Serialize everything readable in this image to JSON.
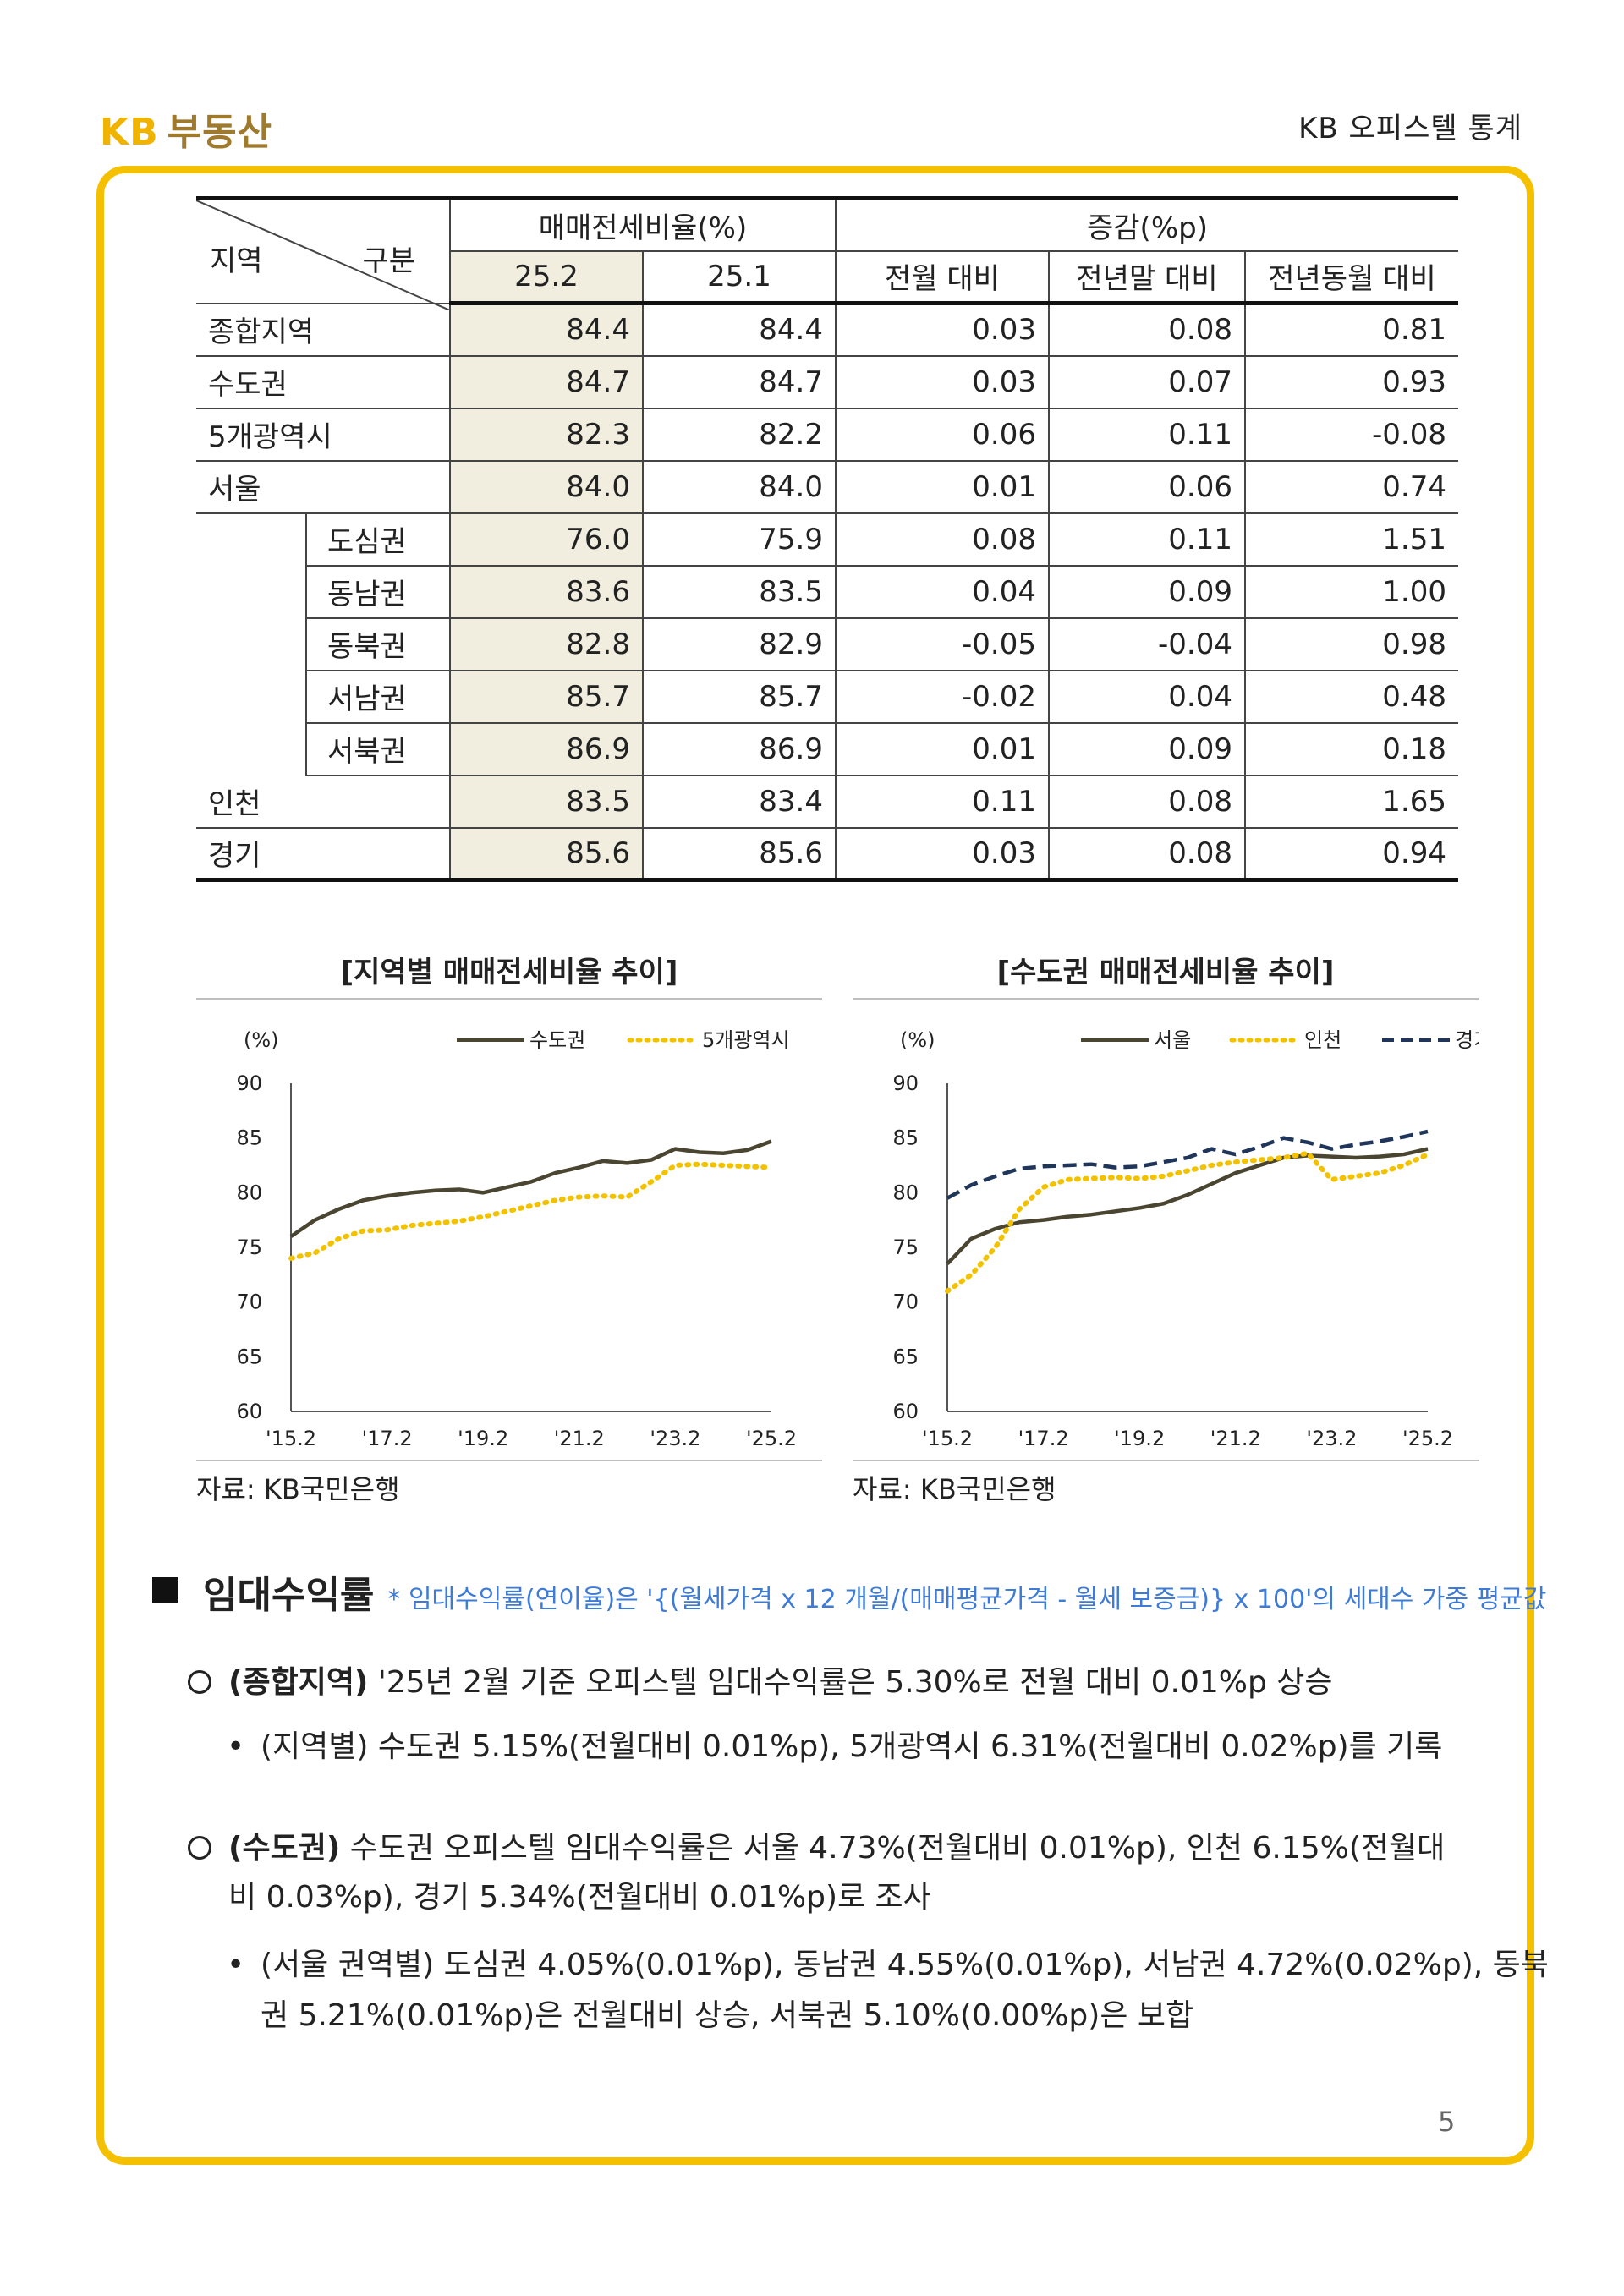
{
  "header": {
    "brand_kb": "KB",
    "brand_name": "부동산",
    "doc_title": "KB 오피스텔 통계"
  },
  "table": {
    "corner_region": "지역",
    "corner_category": "구분",
    "group1": "매매전세비율(%)",
    "group2": "증감(%p)",
    "cols": [
      "25.2",
      "25.1",
      "전월 대비",
      "전년말 대비",
      "전년동월 대비"
    ],
    "rows": [
      {
        "label": "종합지역",
        "sub": "",
        "values": [
          "84.4",
          "84.4",
          "0.03",
          "0.08",
          "0.81"
        ]
      },
      {
        "label": "수도권",
        "sub": "",
        "values": [
          "84.7",
          "84.7",
          "0.03",
          "0.07",
          "0.93"
        ]
      },
      {
        "label": "5개광역시",
        "sub": "",
        "values": [
          "82.3",
          "82.2",
          "0.06",
          "0.11",
          "-0.08"
        ]
      },
      {
        "label": "서울",
        "sub": "",
        "values": [
          "84.0",
          "84.0",
          "0.01",
          "0.06",
          "0.74"
        ]
      },
      {
        "label": "",
        "sub": "도심권",
        "values": [
          "76.0",
          "75.9",
          "0.08",
          "0.11",
          "1.51"
        ]
      },
      {
        "label": "",
        "sub": "동남권",
        "values": [
          "83.6",
          "83.5",
          "0.04",
          "0.09",
          "1.00"
        ]
      },
      {
        "label": "",
        "sub": "동북권",
        "values": [
          "82.8",
          "82.9",
          "-0.05",
          "-0.04",
          "0.98"
        ]
      },
      {
        "label": "",
        "sub": "서남권",
        "values": [
          "85.7",
          "85.7",
          "-0.02",
          "0.04",
          "0.48"
        ]
      },
      {
        "label": "",
        "sub": "서북권",
        "values": [
          "86.9",
          "86.9",
          "0.01",
          "0.09",
          "0.18"
        ]
      },
      {
        "label": "인천",
        "sub": "",
        "values": [
          "83.5",
          "83.4",
          "0.11",
          "0.08",
          "1.65"
        ]
      },
      {
        "label": "경기",
        "sub": "",
        "values": [
          "85.6",
          "85.6",
          "0.03",
          "0.08",
          "0.94"
        ]
      }
    ]
  },
  "chart_data": [
    {
      "type": "line",
      "title": "[지역별 매매전세비율 추이]",
      "ylabel": "(%)",
      "ylim": [
        60,
        90
      ],
      "yticks": [
        "90",
        "85",
        "80",
        "75",
        "70",
        "65",
        "60"
      ],
      "xticks": [
        "'15.2",
        "'17.2",
        "'19.2",
        "'21.2",
        "'23.2",
        "'25.2"
      ],
      "source": "자료: KB국민은행",
      "series": [
        {
          "name": "수도권",
          "style": "solid",
          "color": "#4a4530",
          "x": [
            0,
            0.5,
            1,
            1.5,
            2,
            2.5,
            3,
            3.5,
            4,
            4.5,
            5,
            5.5,
            6,
            6.5,
            7,
            7.5,
            8,
            8.5,
            9,
            9.5,
            10
          ],
          "values": [
            76.0,
            77.5,
            78.5,
            79.3,
            79.7,
            80.0,
            80.2,
            80.3,
            80.0,
            80.5,
            81.0,
            81.8,
            82.3,
            82.9,
            82.7,
            83.0,
            84.0,
            83.7,
            83.6,
            83.9,
            84.7
          ]
        },
        {
          "name": "5개광역시",
          "style": "dotted",
          "color": "#f2c200",
          "x": [
            0,
            0.5,
            1,
            1.5,
            2,
            2.5,
            3,
            3.5,
            4,
            4.5,
            5,
            5.5,
            6,
            6.5,
            7,
            7.5,
            8,
            8.5,
            9,
            9.5,
            10
          ],
          "values": [
            74.0,
            74.5,
            75.8,
            76.5,
            76.6,
            77.0,
            77.2,
            77.4,
            77.8,
            78.3,
            78.8,
            79.3,
            79.6,
            79.7,
            79.6,
            81.0,
            82.5,
            82.6,
            82.5,
            82.4,
            82.3
          ]
        }
      ]
    },
    {
      "type": "line",
      "title": "[수도권 매매전세비율 추이]",
      "ylabel": "(%)",
      "ylim": [
        60,
        90
      ],
      "yticks": [
        "90",
        "85",
        "80",
        "75",
        "70",
        "65",
        "60"
      ],
      "xticks": [
        "'15.2",
        "'17.2",
        "'19.2",
        "'21.2",
        "'23.2",
        "'25.2"
      ],
      "source": "자료: KB국민은행",
      "series": [
        {
          "name": "서울",
          "style": "solid",
          "color": "#4a4530",
          "x": [
            0,
            0.5,
            1,
            1.5,
            2,
            2.5,
            3,
            3.5,
            4,
            4.5,
            5,
            5.5,
            6,
            6.5,
            7,
            7.5,
            8,
            8.5,
            9,
            9.5,
            10
          ],
          "values": [
            73.5,
            75.8,
            76.7,
            77.3,
            77.5,
            77.8,
            78.0,
            78.3,
            78.6,
            79.0,
            79.8,
            80.8,
            81.8,
            82.5,
            83.2,
            83.4,
            83.3,
            83.2,
            83.3,
            83.5,
            84.0
          ]
        },
        {
          "name": "인천",
          "style": "dotted",
          "color": "#f2c200",
          "x": [
            0,
            0.5,
            1,
            1.5,
            2,
            2.5,
            3,
            3.5,
            4,
            4.5,
            5,
            5.5,
            6,
            6.5,
            7,
            7.5,
            8,
            8.5,
            9,
            9.5,
            10
          ],
          "values": [
            71.0,
            72.5,
            75.0,
            78.5,
            80.5,
            81.2,
            81.3,
            81.4,
            81.3,
            81.5,
            82.0,
            82.5,
            82.8,
            83.0,
            83.2,
            83.6,
            81.2,
            81.5,
            81.8,
            82.5,
            83.5
          ]
        },
        {
          "name": "경기",
          "style": "dashed",
          "color": "#1f3559",
          "x": [
            0,
            0.5,
            1,
            1.5,
            2,
            2.5,
            3,
            3.5,
            4,
            4.5,
            5,
            5.5,
            6,
            6.5,
            7,
            7.5,
            8,
            8.5,
            9,
            9.5,
            10
          ],
          "values": [
            79.5,
            80.7,
            81.5,
            82.2,
            82.4,
            82.5,
            82.6,
            82.3,
            82.4,
            82.8,
            83.2,
            84.0,
            83.5,
            84.2,
            85.0,
            84.6,
            84.0,
            84.4,
            84.7,
            85.1,
            85.6
          ]
        }
      ]
    }
  ],
  "section": {
    "title": "임대수익률",
    "note": "* 임대수익률(연이율)은 '{(월세가격 x 12 개월/(매매평균가격 - 월세 보증금)} x 100'의 세대수 가중 평균값",
    "p1_bold": "(종합지역)",
    "p1_text": " '25년 2월 기준 오피스텔 임대수익률은 5.30%로 전월 대비 0.01%p 상승",
    "b1": "(지역별) 수도권 5.15%(전월대비 0.01%p), 5개광역시 6.31%(전월대비 0.02%p)를 기록",
    "p2_bold": "(수도권)",
    "p2_line1": " 수도권 오피스텔 임대수익률은 서울 4.73%(전월대비 0.01%p), 인천 6.15%(전월대",
    "p2_line2": "비 0.03%p), 경기 5.34%(전월대비 0.01%p)로 조사",
    "b2_line1": "(서울 권역별) 도심권 4.05%(0.01%p), 동남권 4.55%(0.01%p), 서남권 4.72%(0.02%p), 동북",
    "b2_line2": "권 5.21%(0.01%p)은 전월대비 상승, 서북권 5.10%(0.00%p)은 보합"
  },
  "page_number": "5"
}
